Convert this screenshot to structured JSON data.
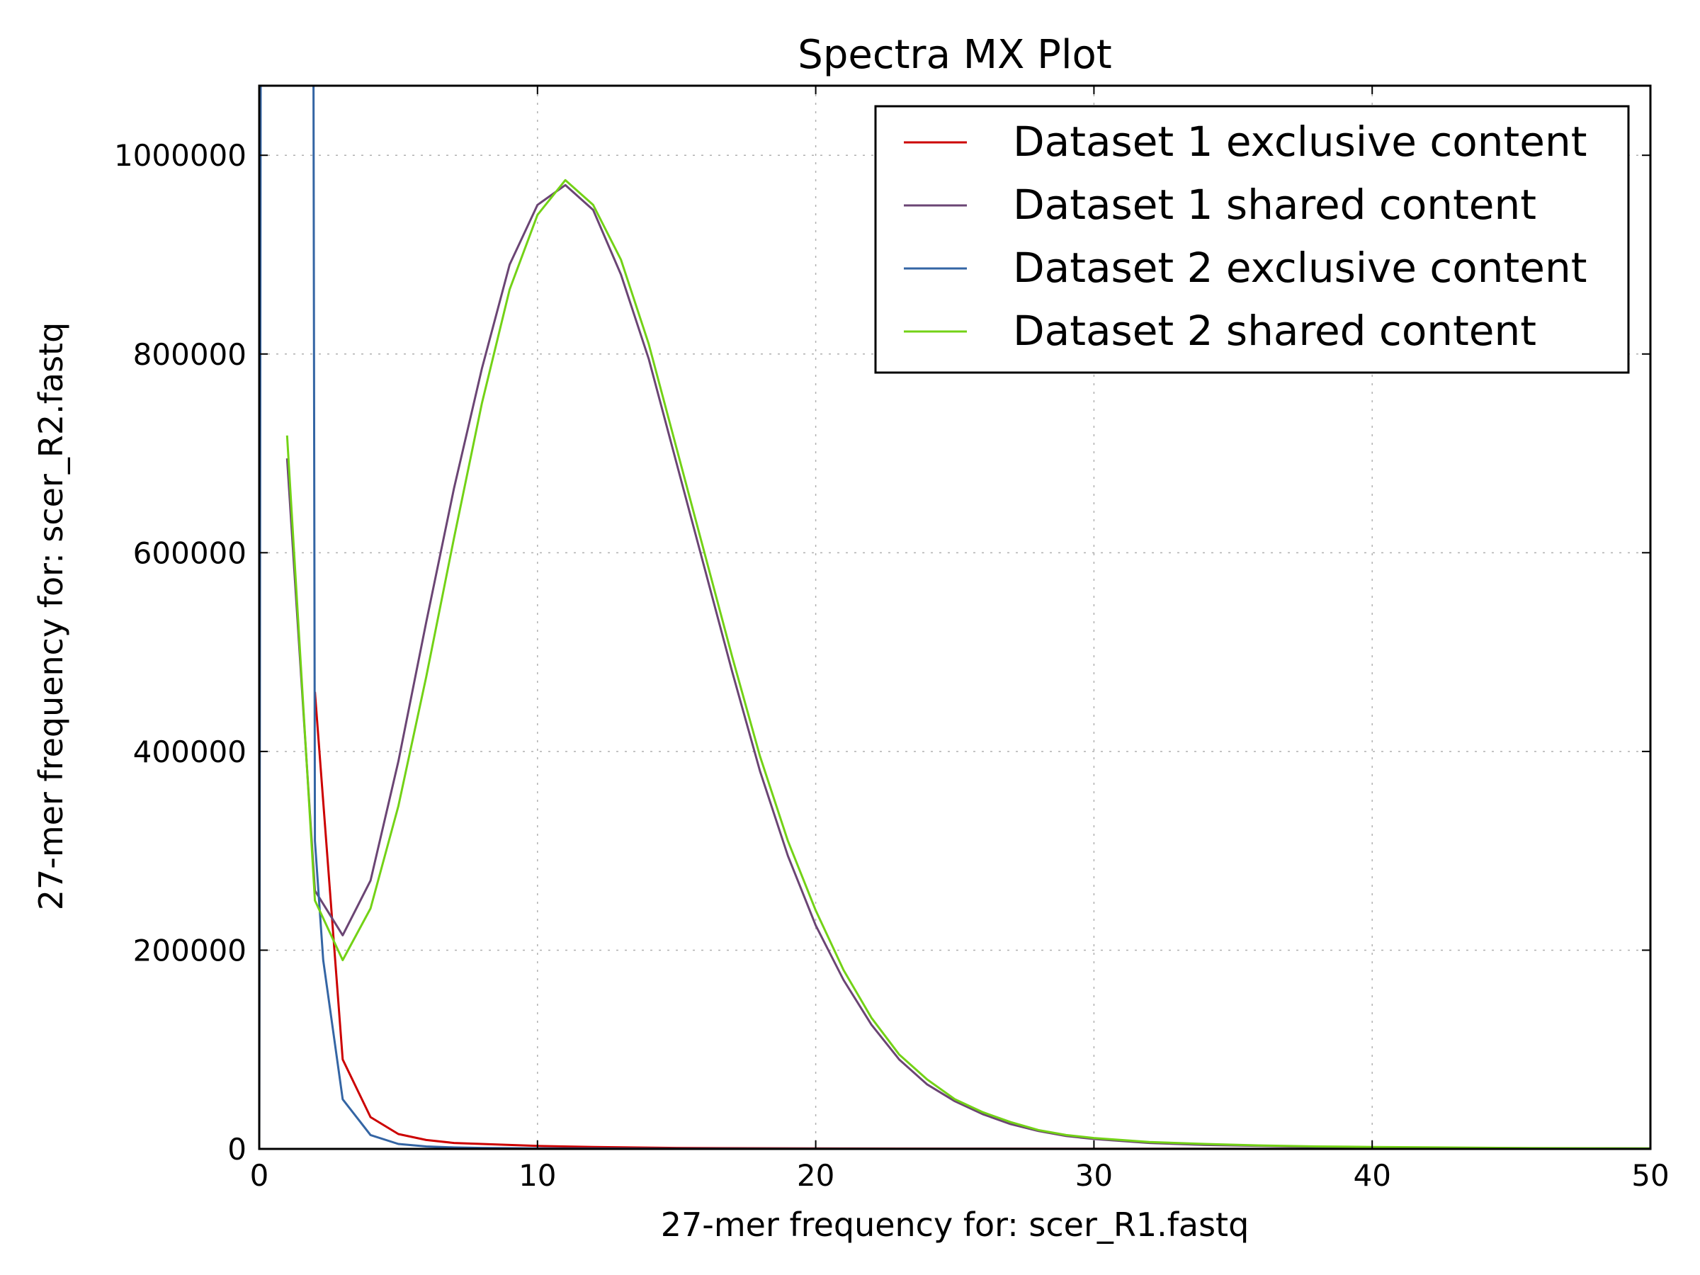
{
  "chart_data": {
    "type": "line",
    "title": "Spectra MX Plot",
    "xlabel": "27-mer frequency for: scer_R1.fastq",
    "ylabel": "27-mer frequency for: scer_R2.fastq",
    "xlim": [
      0,
      50
    ],
    "ylim": [
      0,
      1070000
    ],
    "xticks": [
      0,
      10,
      20,
      30,
      40,
      50
    ],
    "xtick_labels": [
      "0",
      "10",
      "20",
      "30",
      "40",
      "50"
    ],
    "yticks": [
      0,
      200000,
      400000,
      600000,
      800000,
      1000000
    ],
    "ytick_labels": [
      "0",
      "200000",
      "400000",
      "600000",
      "800000",
      "1000000"
    ],
    "grid": true,
    "legend_position": "top-right",
    "series": [
      {
        "name": "Dataset 1 exclusive content",
        "color": "#cc0000",
        "x": [
          2,
          3,
          4,
          5,
          6,
          7,
          8,
          9,
          10,
          12,
          15,
          20,
          25,
          30,
          40,
          50
        ],
        "y": [
          460000,
          90000,
          32000,
          15000,
          9000,
          6000,
          5000,
          4000,
          3000,
          2000,
          1000,
          500,
          300,
          200,
          100,
          50
        ]
      },
      {
        "name": "Dataset 1 shared content",
        "color": "#6b4574",
        "x": [
          1,
          2,
          3,
          4,
          5,
          6,
          7,
          8,
          9,
          10,
          11,
          12,
          13,
          14,
          15,
          16,
          17,
          18,
          19,
          20,
          21,
          22,
          23,
          24,
          25,
          26,
          27,
          28,
          29,
          30,
          32,
          34,
          36,
          38,
          40,
          45,
          50
        ],
        "y": [
          695000,
          260000,
          215000,
          270000,
          390000,
          530000,
          665000,
          785000,
          890000,
          950000,
          970000,
          945000,
          880000,
          795000,
          690000,
          585000,
          480000,
          380000,
          295000,
          225000,
          170000,
          125000,
          90000,
          65000,
          48000,
          35000,
          25000,
          18000,
          13000,
          10000,
          6000,
          4000,
          3000,
          2000,
          1500,
          800,
          400
        ]
      },
      {
        "name": "Dataset 2 exclusive content",
        "color": "#3465a4",
        "x": [
          0,
          0.05,
          1.95,
          2,
          2.3,
          3,
          4,
          5,
          6,
          7,
          8,
          10,
          15,
          20,
          30,
          40,
          50
        ],
        "y": [
          0,
          1070000,
          1070000,
          310000,
          190000,
          50000,
          14000,
          5000,
          2500,
          1500,
          1000,
          600,
          300,
          150,
          80,
          40,
          20
        ]
      },
      {
        "name": "Dataset 2 shared content",
        "color": "#73d216",
        "x": [
          1,
          2,
          3,
          4,
          5,
          6,
          7,
          8,
          9,
          10,
          11,
          12,
          13,
          14,
          15,
          16,
          17,
          18,
          19,
          20,
          21,
          22,
          23,
          24,
          25,
          26,
          27,
          28,
          29,
          30,
          32,
          34,
          36,
          38,
          40,
          45,
          50
        ],
        "y": [
          718000,
          250000,
          190000,
          242000,
          345000,
          475000,
          615000,
          750000,
          865000,
          940000,
          975000,
          950000,
          895000,
          810000,
          705000,
          600000,
          495000,
          395000,
          310000,
          240000,
          180000,
          132000,
          95000,
          70000,
          50000,
          37000,
          27000,
          19000,
          14000,
          11000,
          7000,
          5000,
          3500,
          2500,
          2000,
          1000,
          500
        ]
      }
    ]
  }
}
